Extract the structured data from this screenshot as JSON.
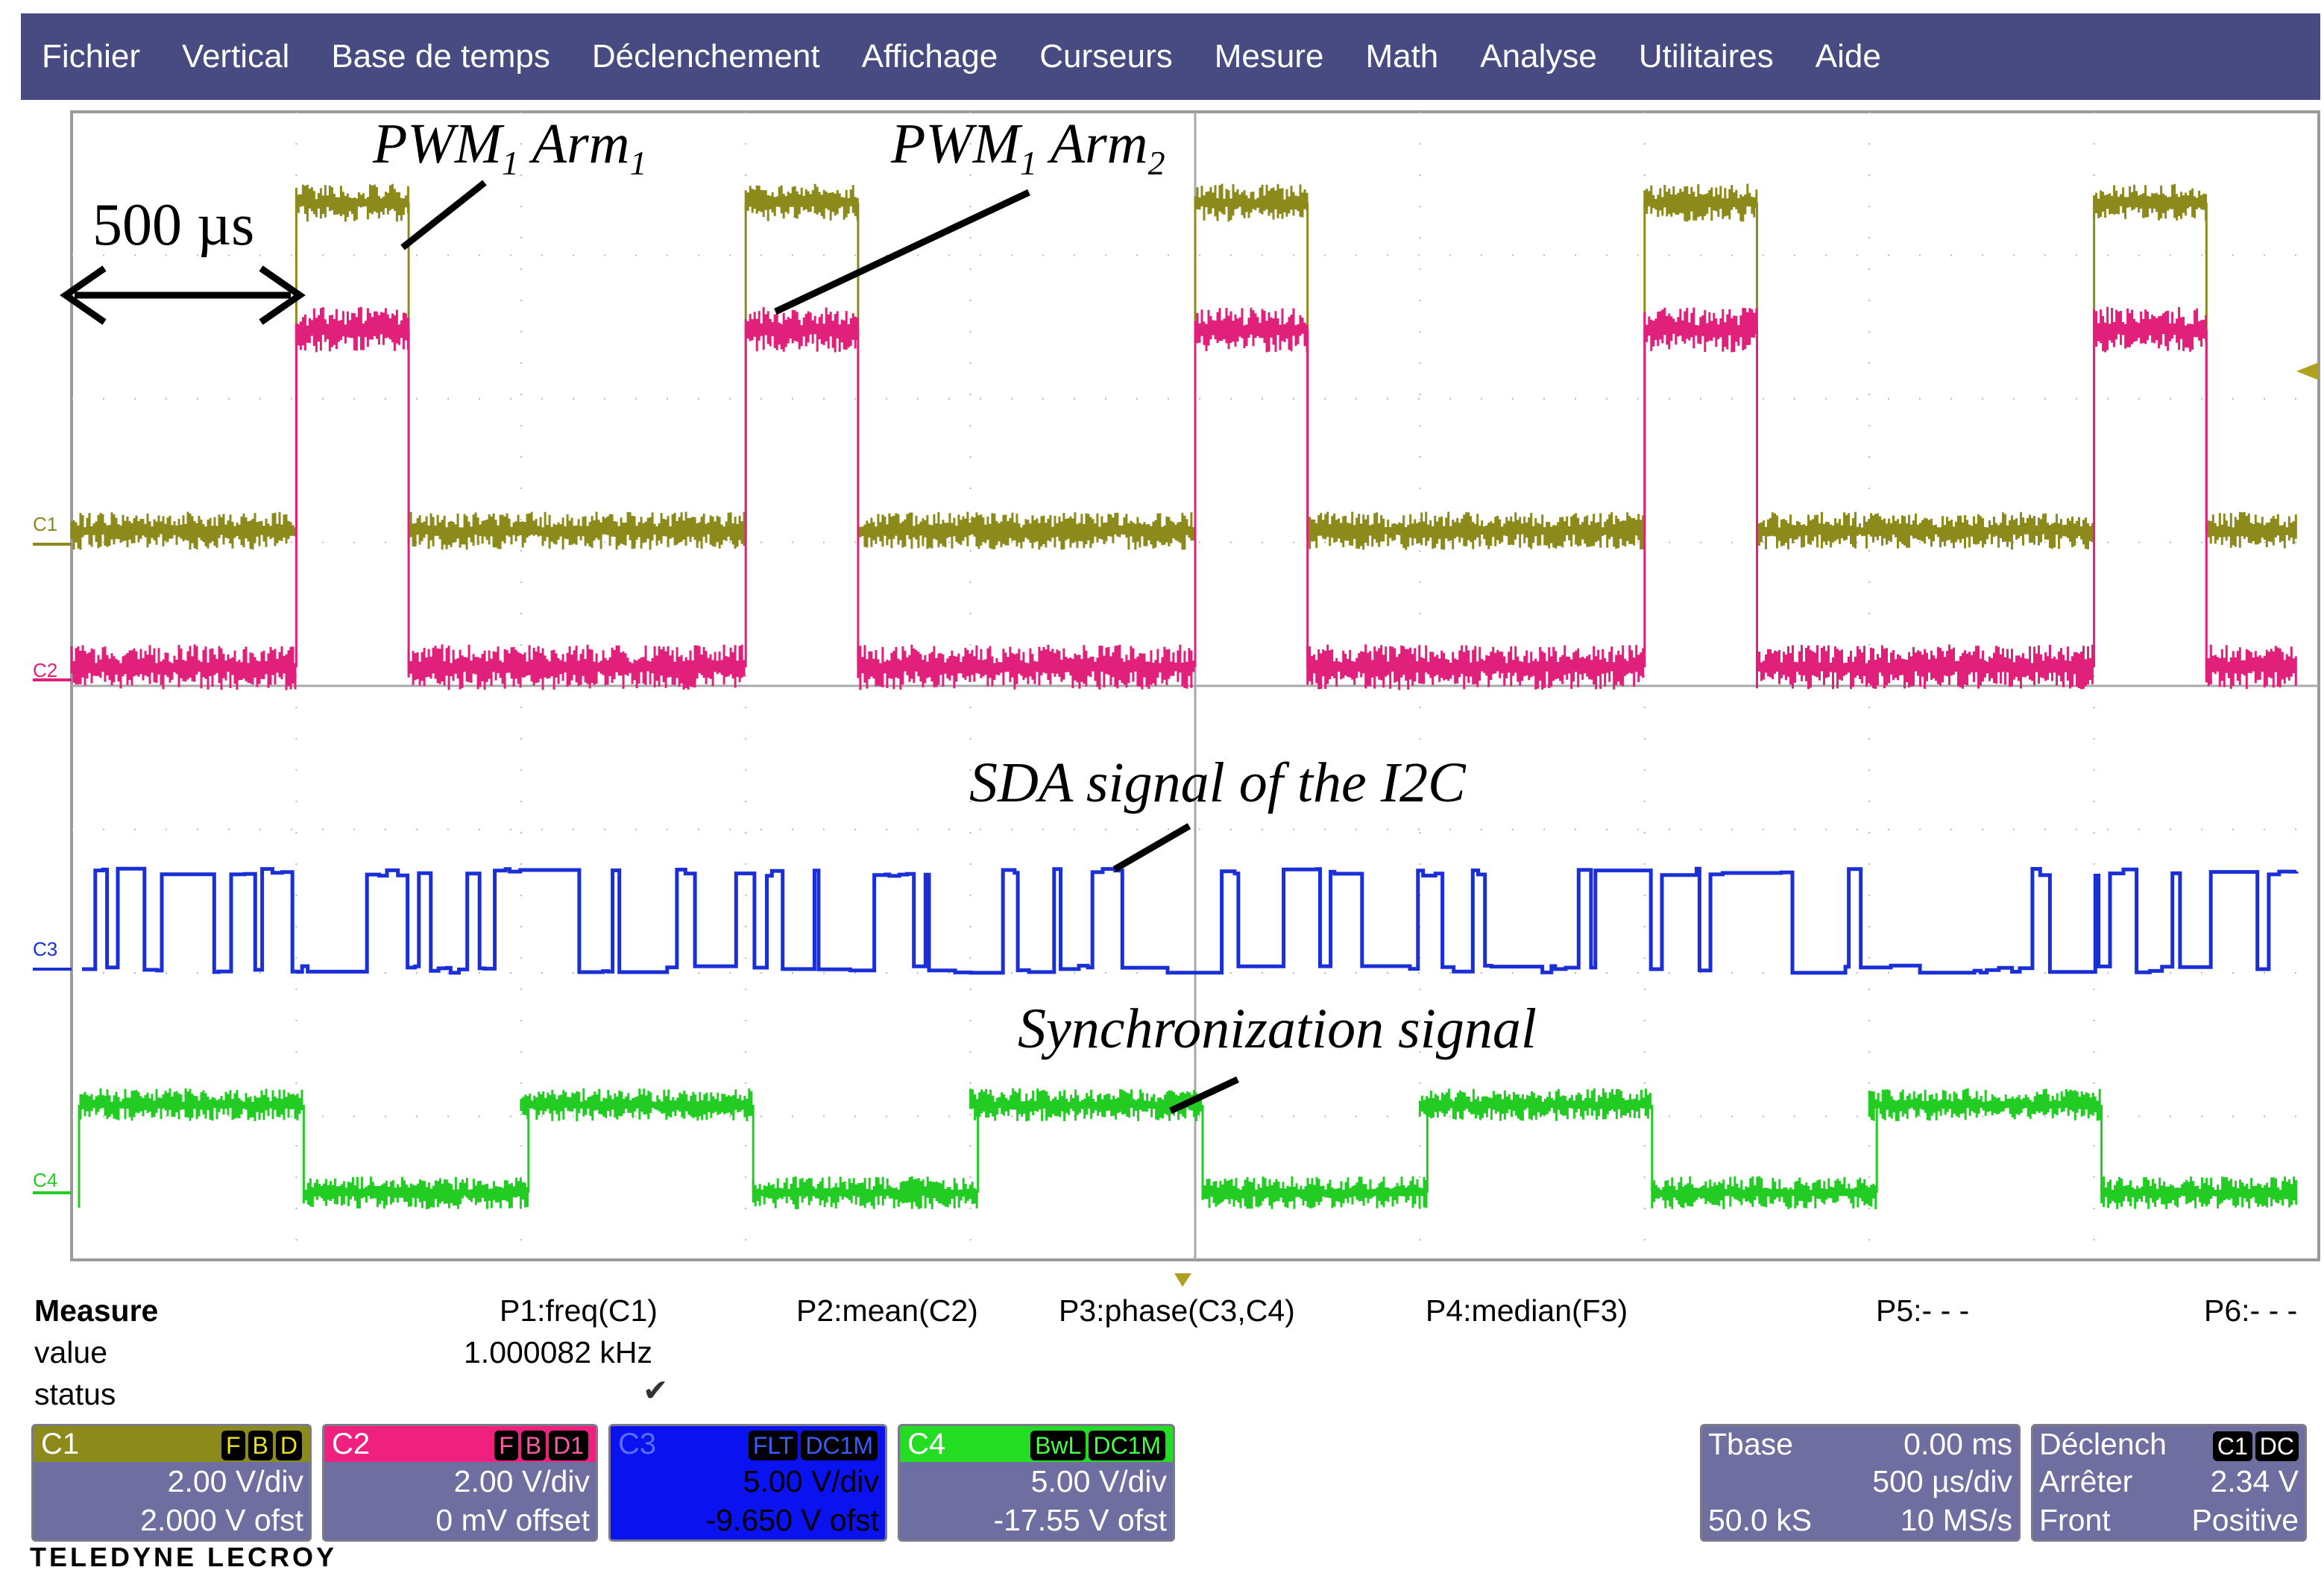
{
  "menu": [
    "Fichier",
    "Vertical",
    "Base de temps",
    "Déclenchement",
    "Affichage",
    "Curseurs",
    "Mesure",
    "Math",
    "Analyse",
    "Utilitaires",
    "Aide"
  ],
  "annotations": {
    "time_span": "500 µs",
    "pwm_arm1_base": "PWM",
    "pwm_arm1_sub1": "1",
    "pwm_arm1_mid": " Arm",
    "pwm_arm1_sub2": "1",
    "pwm_arm2_base": "PWM",
    "pwm_arm2_sub1": "1",
    "pwm_arm2_mid": " Arm",
    "pwm_arm2_sub2": "2",
    "sda": "SDA signal of the I2C",
    "sync": "Synchronization signal"
  },
  "channel_labels": {
    "c1": "C1",
    "c2": "C2",
    "c3": "C3",
    "c4": "C4"
  },
  "colors": {
    "c1": "#8c8a1a",
    "c2": "#e0207a",
    "c3": "#1a2fd6",
    "c4": "#22cc22",
    "menubar": "#484a82"
  },
  "measure": {
    "title": "Measure",
    "row_value": "value",
    "row_status": "status",
    "p1_label": "P1:freq(C1)",
    "p1_value": "1.000082 kHz",
    "p1_status": "✔",
    "p2_label": "P2:mean(C2)",
    "p3_label": "P3:phase(C3,C4)",
    "p4_label": "P4:median(F3)",
    "p5_label": "P5:- - -",
    "p6_label": "P6:- - -"
  },
  "panels": {
    "c1": {
      "name": "C1",
      "badges": [
        "F",
        "B",
        "D"
      ],
      "vdiv": "2.00 V/div",
      "offset": "2.000 V ofst"
    },
    "c2": {
      "name": "C2",
      "badges": [
        "F",
        "B",
        "D1"
      ],
      "vdiv": "2.00 V/div",
      "offset": "0 mV offset"
    },
    "c3": {
      "name": "C3",
      "badges": [
        "FLT",
        "DC1M"
      ],
      "vdiv": "5.00 V/div",
      "offset": "-9.650 V ofst"
    },
    "c4": {
      "name": "C4",
      "badges": [
        "BwL",
        "DC1M"
      ],
      "vdiv": "5.00 V/div",
      "offset": "-17.55 V ofst"
    },
    "tbase": {
      "title": "Tbase",
      "delay": "0.00 ms",
      "per_div": "500 µs/div",
      "samples": "50.0 kS",
      "rate": "10 MS/s"
    },
    "trigger": {
      "title": "Déclench",
      "badges": [
        "C1",
        "DC"
      ],
      "mode": "Arrêter",
      "level": "2.34 V",
      "type": "Front",
      "slope": "Positive"
    }
  },
  "brand": "TELEDYNE LECROY",
  "waveforms": {
    "period_divs": 2,
    "pwm_high_start_divs": [
      1,
      3,
      5,
      7,
      9
    ],
    "pwm_high_width_divs": 0.5,
    "sync_high_divs": [
      [
        0,
        1
      ],
      [
        2,
        3
      ],
      [
        4,
        5
      ],
      [
        6,
        7
      ],
      [
        8,
        9
      ]
    ]
  }
}
